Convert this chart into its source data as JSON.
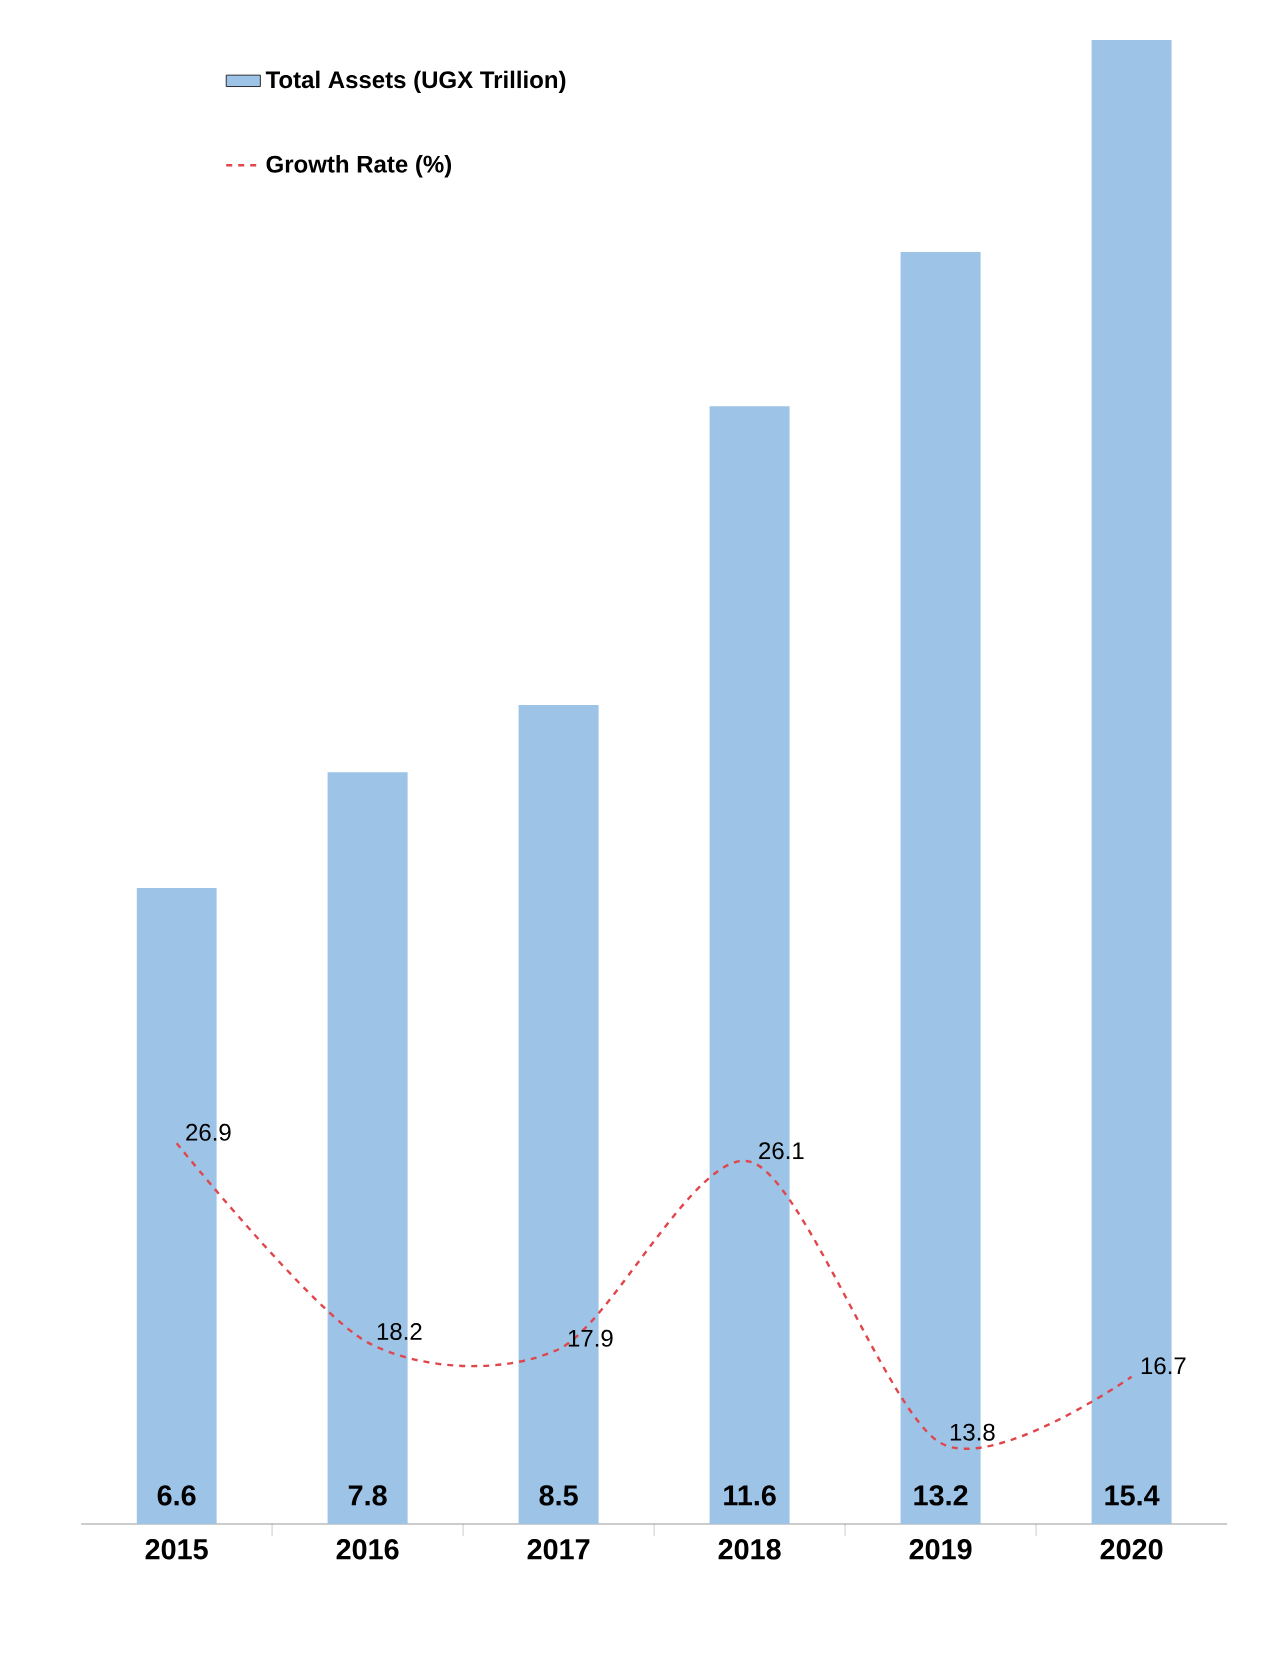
{
  "chart_data": {
    "type": "bar",
    "categories": [
      "2015",
      "2016",
      "2017",
      "2018",
      "2019",
      "2020"
    ],
    "series": [
      {
        "name": "Total Assets (UGX Trillion)",
        "color": "#9dc3e6",
        "values": [
          6.6,
          7.8,
          8.5,
          11.6,
          13.2,
          15.4
        ]
      },
      {
        "name": "Growth Rate (%)",
        "type": "line",
        "axis": "y2",
        "color": "#e0474c",
        "values": [
          26.9,
          18.2,
          17.9,
          26.1,
          13.8,
          16.7
        ]
      }
    ],
    "line_style": "dashed",
    "legend": "top left",
    "data_labels": true
  }
}
